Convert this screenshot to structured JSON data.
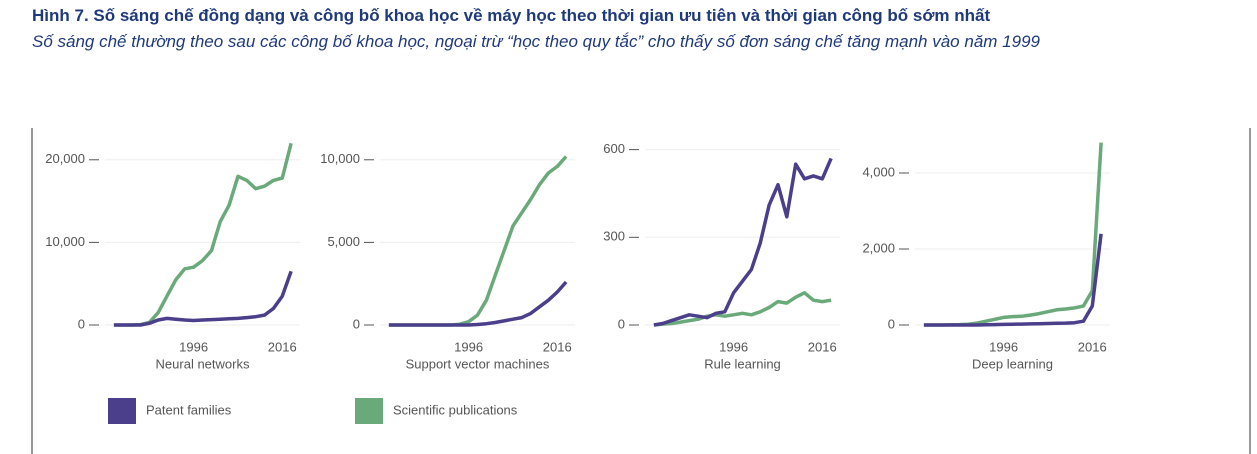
{
  "title": "Hình 7. Số sáng chế đồng dạng và công bố khoa học về máy học theo thời gian ưu tiên và thời gian công bố sớm nhất",
  "subtitle": "Số sáng chế thường theo sau các công bố khoa học, ngoại trừ “học theo quy tắc” cho thấy số đơn sáng chế tăng mạnh vào năm 1999",
  "legend": [
    {
      "name": "Patent families",
      "color": "#4b3f8c"
    },
    {
      "name": "Scientific publications",
      "color": "#6aa97a"
    }
  ],
  "chart_data": [
    {
      "type": "line",
      "xlabel": "Neural networks",
      "x": [
        1978,
        1980,
        1982,
        1984,
        1986,
        1988,
        1990,
        1992,
        1994,
        1996,
        1998,
        2000,
        2002,
        2004,
        2006,
        2008,
        2010,
        2012,
        2014,
        2016,
        2018
      ],
      "xlim": [
        1976,
        2020
      ],
      "xticks": [
        1996,
        2016
      ],
      "ylim": [
        0,
        23000
      ],
      "yticks": [
        0,
        {
          "value": 10000,
          "label": "10,000"
        },
        {
          "value": 20000,
          "label": "20,000"
        }
      ],
      "grid": true,
      "series": [
        {
          "values": [
            0,
            0,
            0,
            0,
            200,
            600,
            800,
            700,
            600,
            550,
            600,
            650,
            700,
            750,
            800,
            900,
            1000,
            1200,
            2000,
            3500,
            6500
          ]
        },
        {
          "values": [
            0,
            0,
            0,
            50,
            300,
            1500,
            3500,
            5500,
            6800,
            7000,
            7800,
            9000,
            12500,
            14500,
            18000,
            17500,
            16500,
            16800,
            17500,
            17800,
            22000
          ]
        }
      ]
    },
    {
      "type": "line",
      "xlabel": "Support vector machines",
      "x": [
        1978,
        1980,
        1982,
        1984,
        1986,
        1988,
        1990,
        1992,
        1994,
        1996,
        1998,
        2000,
        2002,
        2004,
        2006,
        2008,
        2010,
        2012,
        2014,
        2016,
        2018
      ],
      "xlim": [
        1976,
        2020
      ],
      "xticks": [
        1996,
        2016
      ],
      "ylim": [
        0,
        11500
      ],
      "yticks": [
        0,
        {
          "value": 5000,
          "label": "5,000"
        },
        {
          "value": 10000,
          "label": "10,000"
        }
      ],
      "grid": true,
      "series": [
        {
          "values": [
            0,
            0,
            0,
            0,
            0,
            0,
            0,
            0,
            0,
            0,
            30,
            80,
            150,
            250,
            350,
            450,
            700,
            1100,
            1500,
            2000,
            2600
          ]
        },
        {
          "values": [
            0,
            0,
            0,
            0,
            0,
            0,
            0,
            0,
            50,
            200,
            600,
            1500,
            3000,
            4500,
            6000,
            6800,
            7600,
            8500,
            9200,
            9600,
            10200
          ]
        }
      ]
    },
    {
      "type": "line",
      "xlabel": "Rule learning",
      "x": [
        1978,
        1980,
        1982,
        1984,
        1986,
        1988,
        1990,
        1992,
        1994,
        1996,
        1998,
        2000,
        2002,
        2004,
        2006,
        2008,
        2010,
        2012,
        2014,
        2016,
        2018
      ],
      "xlim": [
        1976,
        2020
      ],
      "xticks": [
        1996,
        2016
      ],
      "ylim": [
        0,
        650
      ],
      "yticks": [
        0,
        300,
        600
      ],
      "grid": true,
      "series": [
        {
          "values": [
            0,
            5,
            15,
            25,
            35,
            30,
            25,
            40,
            45,
            110,
            150,
            190,
            280,
            410,
            480,
            370,
            550,
            500,
            510,
            500,
            570
          ]
        },
        {
          "values": [
            0,
            3,
            5,
            10,
            15,
            20,
            30,
            35,
            30,
            35,
            40,
            35,
            45,
            60,
            80,
            75,
            95,
            110,
            85,
            80,
            85
          ]
        }
      ]
    },
    {
      "type": "line",
      "xlabel": "Deep learning",
      "x": [
        1978,
        1980,
        1982,
        1984,
        1986,
        1988,
        1990,
        1992,
        1994,
        1996,
        1998,
        2000,
        2002,
        2004,
        2006,
        2008,
        2010,
        2012,
        2014,
        2016,
        2018
      ],
      "xlim": [
        1976,
        2020
      ],
      "xticks": [
        1996,
        2016
      ],
      "ylim": [
        0,
        5000
      ],
      "yticks": [
        0,
        {
          "value": 2000,
          "label": "2,000"
        },
        {
          "value": 4000,
          "label": "4,000"
        }
      ],
      "grid": true,
      "series": [
        {
          "values": [
            0,
            0,
            0,
            0,
            0,
            0,
            0,
            5,
            10,
            15,
            20,
            25,
            30,
            35,
            40,
            45,
            50,
            60,
            100,
            500,
            2400
          ]
        },
        {
          "values": [
            0,
            0,
            0,
            5,
            10,
            20,
            50,
            100,
            150,
            200,
            220,
            230,
            260,
            300,
            350,
            400,
            420,
            450,
            500,
            900,
            4800
          ]
        }
      ]
    }
  ]
}
